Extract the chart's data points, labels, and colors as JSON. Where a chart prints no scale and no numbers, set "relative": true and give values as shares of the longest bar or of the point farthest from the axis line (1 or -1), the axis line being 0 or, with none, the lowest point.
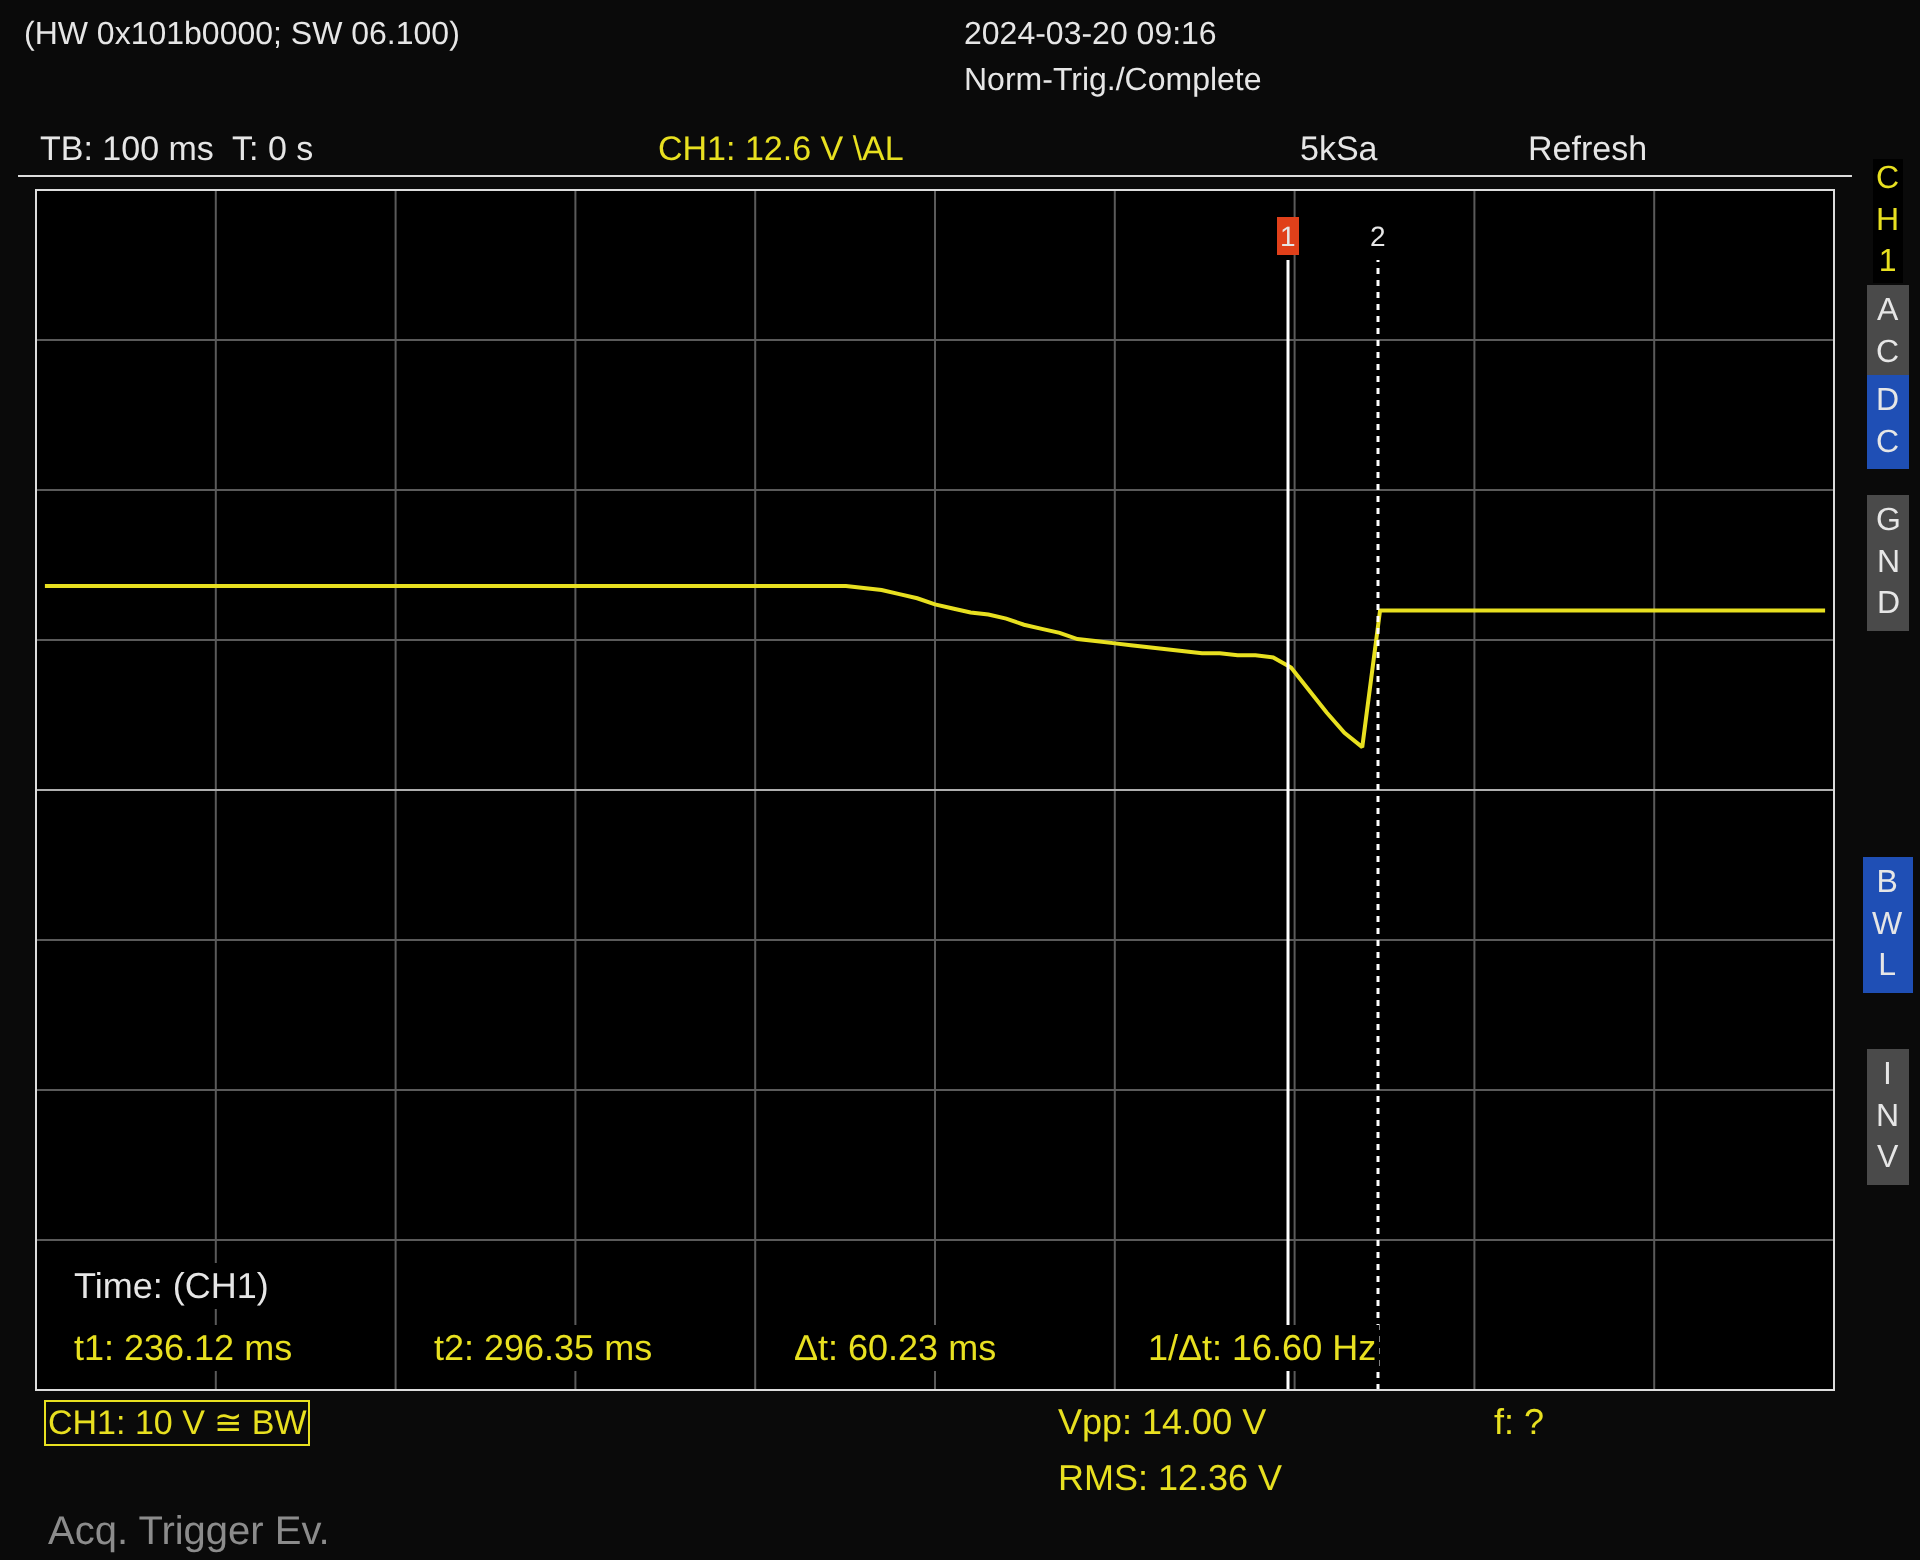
{
  "chart_data": {
    "type": "line",
    "relative": true,
    "grid": true,
    "marker": "none",
    "line_style": "solid",
    "categories": [
      null,
      null,
      null,
      null,
      null,
      null,
      null,
      null,
      null,
      null,
      null,
      null,
      null,
      null,
      null,
      null,
      null,
      null,
      null,
      null,
      null,
      null,
      null,
      null,
      null,
      null,
      null,
      null,
      null,
      null,
      null,
      null,
      null,
      null,
      null,
      null,
      null,
      null,
      null,
      null,
      null,
      null,
      null,
      null,
      null,
      null,
      null,
      null,
      null,
      null,
      null,
      null,
      null,
      null,
      null,
      null,
      null,
      null,
      null,
      null,
      null,
      null,
      null,
      null,
      null,
      null,
      null,
      null,
      null,
      null,
      null,
      null,
      null,
      null,
      null,
      null,
      null,
      null,
      null,
      null,
      null,
      null,
      null,
      null,
      null,
      null,
      null,
      null,
      null,
      null,
      null,
      null,
      null,
      null,
      null,
      null,
      null,
      null,
      null,
      null,
      null
    ],
    "series": [
      {
        "color": "#e8e020",
        "values": [
          1,
          1,
          1,
          1,
          1,
          1,
          1,
          1,
          1,
          1,
          1,
          1,
          1,
          1,
          1,
          1,
          1,
          1,
          1,
          1,
          1,
          1,
          1,
          1,
          1,
          1,
          1,
          1,
          1,
          1,
          1,
          1,
          1,
          1,
          1,
          1,
          1,
          1,
          1,
          1,
          1,
          1,
          1,
          1,
          1,
          1,
          0.99,
          0.98,
          0.96,
          0.94,
          0.91,
          0.89,
          0.87,
          0.86,
          0.84,
          0.81,
          0.79,
          0.77,
          0.74,
          0.73,
          0.72,
          0.71,
          0.7,
          0.69,
          0.68,
          0.67,
          0.67,
          0.66,
          0.66,
          0.65,
          0.6,
          0.49,
          0.38,
          0.28,
          0.21,
          0.88,
          0.88,
          0.88,
          0.88,
          0.88,
          0.88,
          0.88,
          0.88,
          0.88,
          0.88,
          0.88,
          0.88,
          0.88,
          0.88,
          0.88,
          0.88,
          0.88,
          0.88,
          0.88,
          0.88,
          0.88,
          0.88,
          0.88,
          0.88,
          0.88,
          0.88
        ]
      }
    ],
    "annotations": [
      "1",
      "2",
      "(HW 0x101b0000; SW 06.100)",
      "2024-03-20 09:16",
      "Norm-Trig./Complete",
      "TB: 100 ms  T: 0 s",
      "CH1: 12.6 V \\AL",
      "5kSa",
      "Refresh",
      "CH1",
      "AC",
      "DC",
      "GND",
      "BWL",
      "INV",
      "Time: (CH1)",
      "t1: 236.12 ms",
      "t2: 296.35 ms",
      "Δt: 60.23 ms",
      "1/Δt: 16.60 Hz",
      "CH1: 10 V ≅ BW",
      "Vpp: 14.00 V",
      "RMS: 12.36 V",
      "f: ?",
      "Acq. Trigger Ev."
    ]
  }
}
